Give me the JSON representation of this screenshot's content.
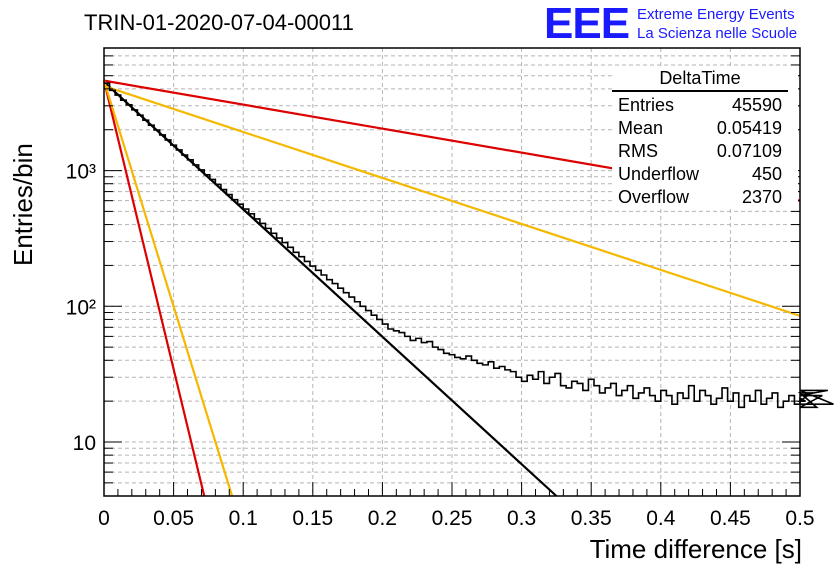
{
  "header": {
    "run_title": "TRIN-01-2020-07-04-00011",
    "logo_text": "EEE",
    "logo_line1": "Extreme Energy Events",
    "logo_line2": "La Scienza nelle Scuole"
  },
  "stats": {
    "title": "DeltaTime",
    "rows": [
      {
        "label": "Entries",
        "value": "45590"
      },
      {
        "label": "Mean",
        "value": "0.05419"
      },
      {
        "label": "RMS",
        "value": "0.07109"
      },
      {
        "label": "Underflow",
        "value": "450"
      },
      {
        "label": "Overflow",
        "value": "2370"
      }
    ]
  },
  "chart_data": {
    "type": "histogram",
    "xlabel": "Time difference [s]",
    "ylabel": "Entries/bin",
    "xlim": [
      0,
      0.5
    ],
    "ylim": [
      4,
      8000
    ],
    "yscale": "log",
    "grid": true,
    "x_ticks": [
      "0",
      "0.05",
      "0.1",
      "0.15",
      "0.2",
      "0.25",
      "0.3",
      "0.35",
      "0.4",
      "0.45",
      "0.5"
    ],
    "y_ticks": [
      {
        "label": "10",
        "value": 10
      },
      {
        "label": "10²",
        "value": 100
      },
      {
        "label": "10³",
        "value": 1000
      }
    ],
    "bin_width": 0.004,
    "histogram_values": [
      4400,
      3900,
      3600,
      3300,
      3050,
      2800,
      2560,
      2350,
      2160,
      1990,
      1830,
      1680,
      1540,
      1420,
      1300,
      1200,
      1100,
      1010,
      930,
      860,
      790,
      725,
      665,
      610,
      565,
      520,
      480,
      440,
      408,
      375,
      345,
      318,
      295,
      272,
      250,
      232,
      214,
      198,
      184,
      170,
      157,
      147,
      136,
      126,
      117,
      108,
      100,
      93,
      86,
      80,
      74,
      68,
      66,
      64,
      60,
      56,
      58,
      54,
      55,
      50,
      48,
      45,
      44,
      42,
      41,
      43,
      40,
      38,
      37,
      39,
      35,
      36,
      34,
      33,
      30,
      28,
      31,
      29,
      33,
      27,
      30,
      32,
      26,
      25,
      28,
      27,
      24,
      29,
      26,
      23,
      25,
      27,
      22,
      24,
      26,
      21,
      23,
      25,
      22,
      20,
      24,
      22,
      19,
      23,
      21,
      26,
      20,
      24,
      22,
      19,
      21,
      25,
      20,
      23,
      18,
      22,
      20,
      24,
      19,
      21,
      23,
      18,
      20,
      22,
      19,
      21,
      20,
      23,
      18,
      22,
      24,
      19
    ],
    "fits": [
      {
        "color": "#000000",
        "x": [
          0,
          0.325
        ],
        "y": [
          4500,
          4
        ]
      },
      {
        "color": "#dd0000",
        "x": [
          0,
          0.5
        ],
        "y": [
          4600,
          600
        ]
      },
      {
        "color": "#f5b800",
        "x": [
          0,
          0.5
        ],
        "y": [
          4200,
          85
        ]
      },
      {
        "color": "#dd0000",
        "x": [
          0,
          0.072
        ],
        "y": [
          4600,
          4
        ]
      },
      {
        "color": "#f5b800",
        "x": [
          0,
          0.092
        ],
        "y": [
          4600,
          4
        ]
      }
    ]
  }
}
